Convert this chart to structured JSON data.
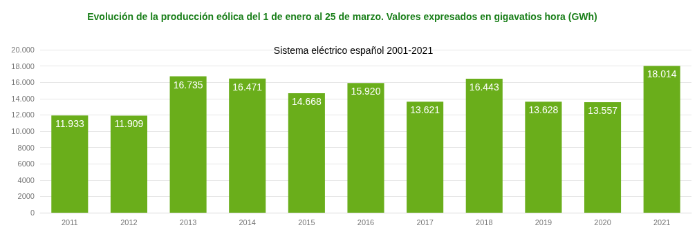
{
  "chart_data": {
    "type": "bar",
    "title": "Evolución de la producción eólica del 1 de enero al 25 de marzo. Valores expresados en gigavatios hora (GWh)",
    "subtitle": "Sistema eléctrico español 2001-2021",
    "categories": [
      "2011",
      "2012",
      "2013",
      "2014",
      "2015",
      "2016",
      "2017",
      "2018",
      "2019",
      "2020",
      "2021"
    ],
    "values": [
      11933,
      11909,
      16735,
      16471,
      14668,
      15920,
      13621,
      16443,
      13628,
      13557,
      18014
    ],
    "value_labels": [
      "11.933",
      "11.909",
      "16.735",
      "16.471",
      "14.668",
      "15.920",
      "13.621",
      "16.443",
      "13.628",
      "13.557",
      "18.014"
    ],
    "color": "#6aae1b",
    "ylim": [
      0,
      20000
    ],
    "yticks": [
      0,
      2000,
      4000,
      6000,
      8000,
      {
        "value": 10000,
        "label": "10.000"
      },
      {
        "value": 12000,
        "label": "12.000"
      },
      {
        "value": 14000,
        "label": "14.000"
      },
      {
        "value": 16000,
        "label": "16.000"
      },
      {
        "value": 18000,
        "label": "18.000"
      },
      {
        "value": 20000,
        "label": "20.000"
      }
    ],
    "grid": "y"
  }
}
